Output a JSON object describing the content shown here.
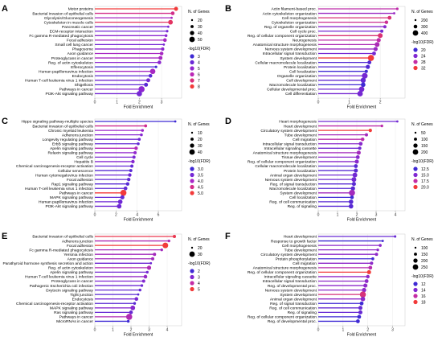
{
  "chart_data": [
    {
      "panel": "A",
      "type": "lollipop",
      "xlabel": "Fold Enrichment",
      "xticks": [
        0,
        1,
        2,
        3
      ],
      "xlim": [
        0,
        3.9
      ],
      "size_legend": {
        "title": "N. of Genes",
        "values": [
          "20",
          "30",
          "40",
          "50"
        ]
      },
      "color_legend": {
        "title": "-log10(FDR)",
        "values": [
          "3",
          "4",
          "5",
          "6",
          "7",
          "8"
        ],
        "colors": [
          "#3f2ad4",
          "#6b28d6",
          "#9227cf",
          "#bb28b5",
          "#da2f7a",
          "#f23a3a"
        ]
      },
      "terms": [
        "Motor proteins",
        "Bacterial invasion of epithelial cells",
        "Glycolysis/Gluconeogenesis",
        "Cytoskeleton in muscle cells",
        "Pancreatic cancer",
        "ECM-receptor interaction",
        "Fc gamma R-mediated phagocytosis",
        "Focal adhesion",
        "Small cell lung cancer",
        "Phagosome",
        "Axon guidance",
        "Proteoglycans in cancer",
        "Reg. of actin cytoskeleton",
        "Efferocytosis",
        "Human papillomavirus infection",
        "Endocytosis",
        "Human T-cell leukemia virus 1 infection",
        "Shigellosis",
        "Pathways in cancer",
        "PI3K-Akt signaling pathway"
      ],
      "fold": [
        3.65,
        3.5,
        3.45,
        3.4,
        3.3,
        3.25,
        3.2,
        3.15,
        3.1,
        3.05,
        3.0,
        2.95,
        2.9,
        2.75,
        2.6,
        2.5,
        2.4,
        2.3,
        2.1,
        2.0
      ],
      "genes": [
        30,
        28,
        18,
        35,
        18,
        20,
        22,
        28,
        18,
        25,
        28,
        30,
        28,
        20,
        40,
        28,
        30,
        30,
        45,
        40
      ],
      "logfdr": [
        8,
        7,
        6,
        7.5,
        5,
        5,
        5.5,
        6,
        5,
        5.5,
        6,
        6,
        5.5,
        4,
        6,
        4.5,
        5,
        4.5,
        5.5,
        5
      ]
    },
    {
      "panel": "B",
      "type": "lollipop",
      "xlabel": "Fold Enrichment",
      "xticks": [
        0,
        1,
        2
      ],
      "xlim": [
        0,
        2.8
      ],
      "size_legend": {
        "title": "N. of Genes",
        "values": [
          "200",
          "300",
          "400"
        ]
      },
      "color_legend": {
        "title": "-log10(FDR)",
        "values": [
          "20",
          "24",
          "28",
          "32"
        ],
        "colors": [
          "#3f2ad4",
          "#8128d2",
          "#c42ca5",
          "#f23a3a"
        ]
      },
      "terms": [
        "Actin filament-based proc.",
        "Actin cytoskeleton organization",
        "Cell morphogenesis",
        "Cytoskeleton organization",
        "Reg. of organelle organization",
        "Cell cycle proc.",
        "Reg. of cellular component organization",
        "Neurogenesis",
        "Anatomical structure morphogenesis",
        "Nervous system development",
        "Intracellular signal transduction",
        "System development",
        "Cellular macromolecule localization",
        "Protein localization",
        "Cell localization",
        "Organelle organization",
        "Cell development",
        "Macromolecule localization",
        "Cellular developmental proc.",
        "Cell differentiation"
      ],
      "fold": [
        2.55,
        2.45,
        2.3,
        2.2,
        2.15,
        2.05,
        2.0,
        1.95,
        1.9,
        1.85,
        1.8,
        1.7,
        1.65,
        1.6,
        1.55,
        1.5,
        1.45,
        1.45,
        1.4,
        1.35
      ],
      "genes": [
        220,
        200,
        300,
        280,
        260,
        260,
        360,
        320,
        360,
        320,
        300,
        440,
        300,
        320,
        260,
        420,
        380,
        340,
        400,
        400
      ],
      "logfdr": [
        28,
        26,
        30,
        29,
        25,
        24,
        30,
        28,
        27,
        26,
        24,
        32,
        22,
        22,
        21,
        24,
        23,
        21,
        24,
        24
      ]
    },
    {
      "panel": "C",
      "type": "lollipop",
      "xlabel": "Fold Enrichment",
      "xticks": [
        0,
        2,
        4,
        6
      ],
      "xlim": [
        0,
        8.2
      ],
      "size_legend": {
        "title": "N. of Genes",
        "values": [
          "10",
          "20",
          "30",
          "40"
        ]
      },
      "color_legend": {
        "title": "-log10(FDR)",
        "values": [
          "3.0",
          "3.5",
          "4.0",
          "4.5",
          "5.0"
        ],
        "colors": [
          "#3f2ad4",
          "#7528d5",
          "#a927c8",
          "#d42d8a",
          "#f23a3a"
        ]
      },
      "terms": [
        "Hippo signaling pathway-multiple species",
        "Bacterial invasion of epithelial cells",
        "Chronic myeloid leukemia",
        "Adherens junction",
        "Longevity regulating pathway",
        "ErbB signaling pathway",
        "Apelin signaling pathway",
        "Relaxin signaling pathway",
        "Cell cycle",
        "Hepatitis B",
        "Chemical carcinogenesis-receptor activation",
        "Cellular senescence",
        "Human cytomegalovirus infection",
        "Focal adhesion",
        "Rap1 signaling pathway",
        "Human T-cell leukemia virus 1 infection",
        "Pathways in cancer",
        "MAPK signaling pathway",
        "Human papillomavirus infection",
        "PI3K-Akt signaling pathway"
      ],
      "fold": [
        7.6,
        4.8,
        4.5,
        4.4,
        4.2,
        4.1,
        3.9,
        3.8,
        3.7,
        3.6,
        3.5,
        3.4,
        3.3,
        3.2,
        3.1,
        2.9,
        2.7,
        2.6,
        2.4,
        2.3
      ],
      "genes": [
        10,
        15,
        14,
        14,
        14,
        14,
        18,
        16,
        16,
        18,
        16,
        16,
        18,
        18,
        18,
        20,
        35,
        22,
        25,
        25
      ],
      "logfdr": [
        3.2,
        4.5,
        4.0,
        3.8,
        3.6,
        3.5,
        4.2,
        3.9,
        3.7,
        3.8,
        3.5,
        3.4,
        3.6,
        3.5,
        3.4,
        3.5,
        5.0,
        3.5,
        3.6,
        3.6
      ]
    },
    {
      "panel": "D",
      "type": "lollipop",
      "xlabel": "Fold Enrichment",
      "xticks": [
        0,
        1,
        2,
        3,
        4
      ],
      "xlim": [
        0,
        4.5
      ],
      "size_legend": {
        "title": "N. of Genes",
        "values": [
          "50",
          "100",
          "150",
          "200"
        ]
      },
      "color_legend": {
        "title": "-log10(FDR)",
        "values": [
          "12.5",
          "15.0",
          "17.5",
          "20.0"
        ],
        "colors": [
          "#3f2ad4",
          "#8128d2",
          "#c42ca5",
          "#f23a3a"
        ]
      },
      "terms": [
        "Heart morphogenesis",
        "Heart development",
        "Circulatory system development",
        "Tube development",
        "Cell migration",
        "Intracellular signal transduction",
        "Intracellular signaling cassette",
        "Anatomical structure morphogenesis",
        "Tissue development",
        "Reg. of cellular component organization",
        "Cellular macromolecule localization",
        "Protein localization",
        "Animal organ development",
        "Nervous system development",
        "Reg. of signal transduction",
        "Macromolecule localization",
        "System development",
        "Cell localization",
        "Reg. of cell communication",
        "Reg. of signaling"
      ],
      "fold": [
        4.1,
        3.3,
        2.7,
        2.5,
        2.3,
        2.2,
        2.15,
        2.1,
        2.05,
        2.0,
        1.95,
        1.95,
        1.9,
        1.85,
        1.85,
        1.8,
        1.75,
        1.75,
        1.7,
        1.7
      ],
      "genes": [
        40,
        60,
        90,
        80,
        100,
        110,
        90,
        120,
        110,
        120,
        110,
        120,
        150,
        150,
        120,
        130,
        210,
        100,
        140,
        140
      ],
      "logfdr": [
        14,
        17,
        20,
        16,
        17,
        15,
        14,
        16,
        15,
        15,
        13,
        13,
        14,
        14,
        13,
        13,
        16,
        12,
        13,
        13
      ]
    },
    {
      "panel": "E",
      "type": "lollipop",
      "xlabel": "Fold Enrichment",
      "xticks": [
        0,
        1,
        2,
        3,
        4
      ],
      "xlim": [
        0,
        4.8
      ],
      "size_legend": {
        "title": "N. of Genes",
        "values": [
          "20",
          "30"
        ]
      },
      "color_legend": {
        "title": "-log10(FDR)",
        "values": [
          "2",
          "3",
          "4",
          "5"
        ],
        "colors": [
          "#3f2ad4",
          "#8128d2",
          "#c42ca5",
          "#f23a3a"
        ]
      },
      "terms": [
        "Bacterial invasion of epithelial cells",
        "Adherens junction",
        "Focal adhesion",
        "Fc gamma R-mediated phagocytosis",
        "Yersinia infection",
        "Axon guidance",
        "Parathyroid hormone synthesis secretion and action",
        "Reg. of actin cytoskeleton",
        "Apelin signaling pathway",
        "Human T-cell leukemia virus 1 infection",
        "Proteoglycans in cancer",
        "Pathogenic Escherichia coli infection",
        "Oxytocin signaling pathway",
        "Tight junction",
        "Endocytosis",
        "Chemical carcinogenesis-receptor activation",
        "MAPK signaling pathway",
        "Ras signaling pathway",
        "Pathways in cancer",
        "MicroRNAs in cancer"
      ],
      "fold": [
        4.4,
        4.1,
        3.9,
        3.7,
        3.3,
        3.2,
        3.1,
        3.0,
        2.9,
        2.8,
        2.7,
        2.6,
        2.5,
        2.4,
        2.3,
        2.2,
        2.1,
        2.0,
        1.9,
        1.85
      ],
      "genes": [
        18,
        16,
        28,
        16,
        18,
        18,
        14,
        22,
        16,
        20,
        18,
        16,
        16,
        14,
        20,
        16,
        24,
        20,
        30,
        16
      ],
      "logfdr": [
        5.3,
        4.2,
        5.5,
        4.0,
        4.0,
        4.0,
        3.2,
        4.2,
        3.3,
        3.8,
        3.5,
        3.2,
        3.1,
        2.9,
        3.4,
        2.9,
        3.6,
        3.1,
        4.2,
        2.5
      ]
    },
    {
      "panel": "F",
      "type": "lollipop",
      "xlabel": "Fold Enrichment",
      "xticks": [
        0,
        1,
        2,
        3
      ],
      "xlim": [
        0,
        3.5
      ],
      "size_legend": {
        "title": "N. of Genes",
        "values": [
          "100",
          "150",
          "200",
          "250"
        ]
      },
      "color_legend": {
        "title": "-log10(FDR)",
        "values": [
          "12",
          "14",
          "16",
          "18"
        ],
        "colors": [
          "#3f2ad4",
          "#8128d2",
          "#c42ca5",
          "#f23a3a"
        ]
      },
      "terms": [
        "Heart development",
        "Response to growth factor",
        "Cell morphogenesis",
        "Tube development",
        "Circulatory system development",
        "Protein phosphorylation",
        "Cell migration",
        "Anatomical structure morphogenesis",
        "Reg. of cellular component organization",
        "Intracellular signaling cassette",
        "Intracellular signal transduction",
        "Reg. of developmental proc.",
        "Nervous system development",
        "System development",
        "Animal organ development",
        "Reg. of signal transduction",
        "Reg. of cell communication",
        "Reg. of signaling",
        "Reg. of cellular component organization",
        "Reg. of developmental proc."
      ],
      "fold": [
        3.1,
        2.6,
        2.5,
        2.4,
        2.35,
        2.2,
        2.15,
        2.1,
        2.05,
        2.0,
        1.95,
        1.9,
        1.85,
        1.8,
        1.8,
        1.75,
        1.7,
        1.7,
        1.65,
        1.6
      ],
      "genes": [
        90,
        80,
        110,
        100,
        120,
        110,
        130,
        150,
        160,
        140,
        150,
        160,
        170,
        250,
        180,
        150,
        160,
        160,
        150,
        150
      ],
      "logfdr": [
        14,
        13,
        15,
        15,
        15,
        13,
        15,
        16,
        18,
        15,
        15,
        15,
        15,
        17,
        15,
        13,
        14,
        14,
        13,
        13
      ]
    }
  ]
}
